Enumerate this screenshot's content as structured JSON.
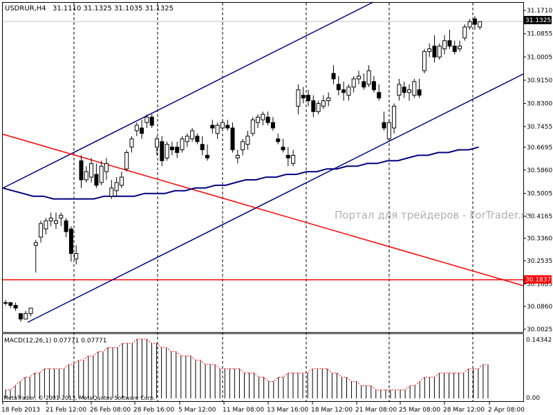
{
  "header": {
    "symbol": "USDRUR,H4",
    "ohlc": "31.1110 31.1325 31.1035 31.1325"
  },
  "watermark": "Портал для трейдеров - ForTrader.ru",
  "macd": {
    "title": "MACD(12,26,1) 0.07771 0.07771",
    "labels": [
      "0.14342",
      "0.00"
    ]
  },
  "copyright": "MetaTrader, © 2001-2013, MetaQuotes Software Corp.",
  "price_axis": {
    "ticks": [
      "31.1710",
      "31.0855",
      "31.0005",
      "30.9150",
      "30.8300",
      "30.7455",
      "30.6695",
      "30.5860",
      "30.5005",
      "30.4165",
      "30.3360",
      "30.2535",
      "30.1685",
      "30.0860",
      "30.0025"
    ],
    "current_price": "31.1325",
    "hline_price": "30.1837"
  },
  "time_axis": {
    "labels": [
      "18 Feb 2013",
      "21 Feb 12:00",
      "26 Feb 08:00",
      "28 Feb 16:00",
      "5 Mar 12:00",
      "11 Mar 08:00",
      "13 Mar 16:00",
      "18 Mar 12:00",
      "21 Mar 08:00",
      "25 Mar 08:00",
      "28 Mar 12:00",
      "2 Apr 08:00"
    ]
  },
  "chart_data": {
    "type": "candlestick",
    "price_range": [
      30.0025,
      31.171
    ],
    "macd_range": [
      0,
      0.14342
    ],
    "colors": {
      "candle": "#000000",
      "channel": "#000080",
      "red_line": "#ff0000",
      "ma": "#000080",
      "macd_signal": "#ff0000",
      "macd_hist": "#000000"
    },
    "grid": false,
    "candles": [
      [
        30.1,
        30.11,
        30.09,
        30.1
      ],
      [
        30.1,
        30.1,
        30.08,
        30.09
      ],
      [
        30.09,
        30.1,
        30.07,
        30.08
      ],
      [
        30.06,
        30.06,
        30.03,
        30.04
      ],
      [
        30.04,
        30.07,
        30.04,
        30.06
      ],
      [
        30.06,
        30.08,
        30.05,
        30.08
      ],
      [
        30.31,
        30.33,
        30.21,
        30.32
      ],
      [
        30.34,
        30.4,
        30.32,
        30.39
      ],
      [
        30.37,
        30.41,
        30.35,
        30.4
      ],
      [
        30.4,
        30.43,
        30.38,
        30.41
      ],
      [
        30.39,
        30.43,
        30.37,
        30.4
      ],
      [
        30.41,
        30.43,
        30.38,
        30.42
      ],
      [
        30.4,
        30.41,
        30.34,
        30.36
      ],
      [
        30.37,
        30.38,
        30.25,
        30.28
      ],
      [
        30.26,
        30.31,
        30.24,
        30.28
      ],
      [
        30.62,
        30.64,
        30.52,
        30.55
      ],
      [
        30.55,
        30.6,
        30.54,
        30.58
      ],
      [
        30.56,
        30.63,
        30.54,
        30.61
      ],
      [
        30.57,
        30.61,
        30.52,
        30.53
      ],
      [
        30.54,
        30.62,
        30.53,
        30.6
      ],
      [
        30.58,
        30.63,
        30.55,
        30.61
      ],
      [
        30.49,
        30.55,
        30.48,
        30.52
      ],
      [
        30.51,
        30.56,
        30.49,
        30.54
      ],
      [
        30.53,
        30.58,
        30.52,
        30.56
      ],
      [
        30.59,
        30.66,
        30.58,
        30.65
      ],
      [
        30.67,
        30.71,
        30.65,
        30.7
      ],
      [
        30.73,
        30.76,
        30.71,
        30.75
      ],
      [
        30.74,
        30.77,
        30.7,
        30.72
      ],
      [
        30.76,
        30.79,
        30.74,
        30.78
      ],
      [
        30.78,
        30.79,
        30.74,
        30.75
      ],
      [
        30.67,
        30.71,
        30.64,
        30.7
      ],
      [
        30.69,
        30.71,
        30.6,
        30.62
      ],
      [
        30.63,
        30.69,
        30.62,
        30.68
      ],
      [
        30.67,
        30.69,
        30.64,
        30.66
      ],
      [
        30.67,
        30.69,
        30.63,
        30.65
      ],
      [
        30.66,
        30.71,
        30.65,
        30.7
      ],
      [
        30.69,
        30.72,
        30.67,
        30.71
      ],
      [
        30.7,
        30.74,
        30.69,
        30.73
      ],
      [
        30.71,
        30.72,
        30.68,
        30.69
      ],
      [
        30.68,
        30.71,
        30.64,
        30.66
      ],
      [
        30.64,
        30.68,
        30.62,
        30.63
      ],
      [
        30.75,
        30.77,
        30.72,
        30.74
      ],
      [
        30.72,
        30.76,
        30.7,
        30.75
      ],
      [
        30.74,
        30.77,
        30.73,
        30.76
      ],
      [
        30.75,
        30.77,
        30.73,
        30.74
      ],
      [
        30.74,
        30.76,
        30.65,
        30.66
      ],
      [
        30.63,
        30.66,
        30.61,
        30.64
      ],
      [
        30.66,
        30.7,
        30.64,
        30.69
      ],
      [
        30.68,
        30.73,
        30.66,
        30.71
      ],
      [
        30.72,
        30.78,
        30.71,
        30.77
      ],
      [
        30.76,
        30.79,
        30.74,
        30.78
      ],
      [
        30.77,
        30.8,
        30.75,
        30.79
      ],
      [
        30.78,
        30.8,
        30.75,
        30.76
      ],
      [
        30.76,
        30.78,
        30.73,
        30.74
      ],
      [
        30.7,
        30.72,
        30.68,
        30.69
      ],
      [
        30.67,
        30.7,
        30.65,
        30.66
      ],
      [
        30.64,
        30.67,
        30.6,
        30.63
      ],
      [
        30.61,
        30.66,
        30.6,
        30.64
      ],
      [
        30.82,
        30.9,
        30.79,
        30.88
      ],
      [
        30.86,
        30.89,
        30.83,
        30.85
      ],
      [
        30.86,
        30.88,
        30.82,
        30.84
      ],
      [
        30.84,
        30.86,
        30.78,
        30.8
      ],
      [
        30.8,
        30.84,
        30.79,
        30.83
      ],
      [
        30.82,
        30.86,
        30.81,
        30.84
      ],
      [
        30.84,
        30.87,
        30.82,
        30.85
      ],
      [
        30.94,
        30.97,
        30.9,
        30.92
      ],
      [
        30.9,
        30.93,
        30.86,
        30.88
      ],
      [
        30.88,
        30.91,
        30.84,
        30.87
      ],
      [
        30.86,
        30.9,
        30.84,
        30.89
      ],
      [
        30.89,
        30.93,
        30.87,
        30.92
      ],
      [
        30.92,
        30.95,
        30.9,
        30.93
      ],
      [
        30.91,
        30.94,
        30.88,
        30.89
      ],
      [
        30.9,
        30.97,
        30.89,
        30.95
      ],
      [
        30.91,
        30.93,
        30.87,
        30.88
      ],
      [
        30.87,
        30.9,
        30.84,
        30.85
      ],
      [
        30.76,
        30.8,
        30.73,
        30.74
      ],
      [
        30.7,
        30.77,
        30.69,
        30.76
      ],
      [
        30.74,
        30.83,
        30.72,
        30.82
      ],
      [
        30.86,
        30.92,
        30.84,
        30.9
      ],
      [
        30.89,
        30.91,
        30.85,
        30.87
      ],
      [
        30.87,
        30.9,
        30.84,
        30.88
      ],
      [
        30.86,
        30.92,
        30.85,
        30.91
      ],
      [
        30.88,
        30.92,
        30.85,
        30.86
      ],
      [
        30.95,
        31.03,
        30.94,
        31.02
      ],
      [
        31.02,
        31.05,
        31.0,
        31.03
      ],
      [
        31.04,
        31.08,
        30.98,
        31.0
      ],
      [
        31.0,
        31.05,
        30.99,
        31.04
      ],
      [
        31.03,
        31.08,
        31.01,
        31.06
      ],
      [
        31.06,
        31.1,
        31.03,
        31.04
      ],
      [
        31.04,
        31.06,
        31.01,
        31.02
      ],
      [
        31.03,
        31.06,
        31.02,
        31.04
      ],
      [
        31.07,
        31.12,
        31.06,
        31.11
      ],
      [
        31.11,
        31.14,
        31.1,
        31.13
      ],
      [
        31.14,
        31.15,
        31.1,
        31.12
      ],
      [
        31.11,
        31.13,
        31.1,
        31.13
      ]
    ],
    "ma": [
      30.52,
      30.51,
      30.5,
      30.49,
      30.49,
      30.48,
      30.48,
      30.48,
      30.48,
      30.48,
      30.49,
      30.49,
      30.49,
      30.49,
      30.5,
      30.5,
      30.5,
      30.51,
      30.51,
      30.52,
      30.52,
      30.53,
      30.53,
      30.54,
      30.55,
      30.55,
      30.56,
      30.56,
      30.57,
      30.57,
      30.58,
      30.58,
      30.59,
      30.59,
      30.6,
      30.6,
      30.61,
      30.61,
      30.62,
      30.62,
      30.63,
      30.64,
      30.64,
      30.65,
      30.65,
      30.66,
      30.66,
      30.67
    ],
    "macd": [
      0.02,
      0.02,
      0.03,
      0.04,
      0.05,
      0.05,
      0.06,
      0.06,
      0.07,
      0.07,
      0.07,
      0.07,
      0.07,
      0.08,
      0.08,
      0.09,
      0.09,
      0.1,
      0.1,
      0.11,
      0.11,
      0.12,
      0.12,
      0.12,
      0.13,
      0.13,
      0.13,
      0.14,
      0.14,
      0.14,
      0.13,
      0.13,
      0.12,
      0.12,
      0.11,
      0.11,
      0.1,
      0.1,
      0.1,
      0.09,
      0.09,
      0.08,
      0.08,
      0.08,
      0.07,
      0.07,
      0.07,
      0.07,
      0.07,
      0.06,
      0.06,
      0.06,
      0.05,
      0.05,
      0.04,
      0.04,
      0.05,
      0.05,
      0.06,
      0.06,
      0.06,
      0.06,
      0.06,
      0.07,
      0.07,
      0.07,
      0.07,
      0.06,
      0.06,
      0.05,
      0.05,
      0.04,
      0.04,
      0.03,
      0.03,
      0.03,
      0.02,
      0.02,
      0.02,
      0.02,
      0.02,
      0.02,
      0.02,
      0.03,
      0.03,
      0.04,
      0.05,
      0.05,
      0.05,
      0.06,
      0.06,
      0.06,
      0.06,
      0.06,
      0.06,
      0.07,
      0.07,
      0.07,
      0.08,
      0.08
    ]
  }
}
